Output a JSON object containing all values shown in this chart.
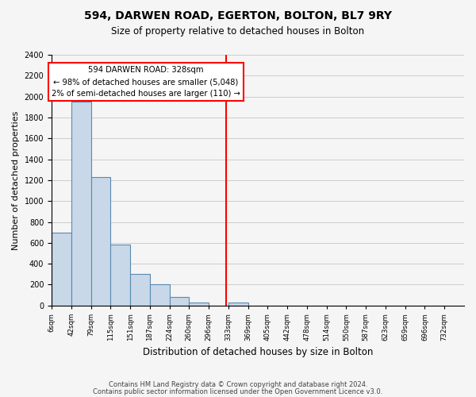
{
  "title": "594, DARWEN ROAD, EGERTON, BOLTON, BL7 9RY",
  "subtitle": "Size of property relative to detached houses in Bolton",
  "xlabel": "Distribution of detached houses by size in Bolton",
  "ylabel": "Number of detached properties",
  "bin_labels": [
    "6sqm",
    "42sqm",
    "79sqm",
    "115sqm",
    "151sqm",
    "187sqm",
    "224sqm",
    "260sqm",
    "296sqm",
    "333sqm",
    "369sqm",
    "405sqm",
    "442sqm",
    "478sqm",
    "514sqm",
    "550sqm",
    "587sqm",
    "623sqm",
    "659sqm",
    "696sqm",
    "732sqm"
  ],
  "bar_heights": [
    700,
    1950,
    1230,
    580,
    300,
    200,
    80,
    30,
    0,
    30,
    0,
    0,
    0,
    0,
    0,
    0,
    0,
    0,
    0,
    0
  ],
  "bar_color": "#c8d8e8",
  "bar_edge_color": "#5a8ab0",
  "vline_color": "red",
  "annotation_title": "594 DARWEN ROAD: 328sqm",
  "annotation_line1": "← 98% of detached houses are smaller (5,048)",
  "annotation_line2": "2% of semi-detached houses are larger (110) →",
  "annotation_box_color": "white",
  "annotation_box_edge": "red",
  "ylim": [
    0,
    2400
  ],
  "yticks": [
    0,
    200,
    400,
    600,
    800,
    1000,
    1200,
    1400,
    1600,
    1800,
    2000,
    2200,
    2400
  ],
  "footer1": "Contains HM Land Registry data © Crown copyright and database right 2024.",
  "footer2": "Contains public sector information licensed under the Open Government Licence v3.0.",
  "bg_color": "#f5f5f5",
  "grid_color": "#cccccc"
}
